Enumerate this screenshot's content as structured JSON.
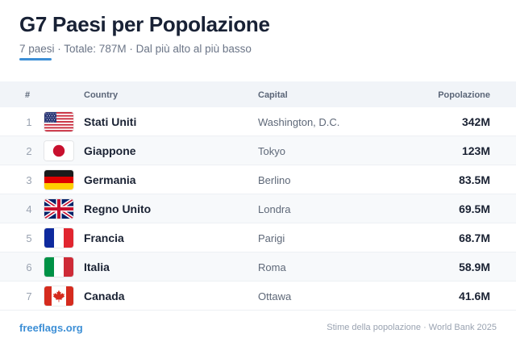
{
  "header": {
    "title": "G7 Paesi per Popolazione",
    "subtitle": "7 paesi · Totale: 787M · Dal più alto al più basso"
  },
  "table": {
    "columns": {
      "rank": "#",
      "country": "Country",
      "capital": "Capital",
      "population": "Popolazione"
    },
    "rows": [
      {
        "rank": "1",
        "flag": "us-flag-icon",
        "country": "Stati Uniti",
        "capital": "Washington, D.C.",
        "population": "342M"
      },
      {
        "rank": "2",
        "flag": "jp-flag-icon",
        "country": "Giappone",
        "capital": "Tokyo",
        "population": "123M"
      },
      {
        "rank": "3",
        "flag": "de-flag-icon",
        "country": "Germania",
        "capital": "Berlino",
        "population": "83.5M"
      },
      {
        "rank": "4",
        "flag": "gb-flag-icon",
        "country": "Regno Unito",
        "capital": "Londra",
        "population": "69.5M"
      },
      {
        "rank": "5",
        "flag": "fr-flag-icon",
        "country": "Francia",
        "capital": "Parigi",
        "population": "68.7M"
      },
      {
        "rank": "6",
        "flag": "it-flag-icon",
        "country": "Italia",
        "capital": "Roma",
        "population": "58.9M"
      },
      {
        "rank": "7",
        "flag": "ca-flag-icon",
        "country": "Canada",
        "capital": "Ottawa",
        "population": "41.6M"
      }
    ]
  },
  "footer": {
    "link": "freeflags.org",
    "note": "Stime della popolazione · World Bank 2025"
  },
  "colors": {
    "accent": "#3d8fd6",
    "header_bg": "#f1f4f8",
    "alt_row_bg": "#f7f9fb",
    "text_primary": "#1a2233",
    "text_muted": "#9aa3b1"
  }
}
